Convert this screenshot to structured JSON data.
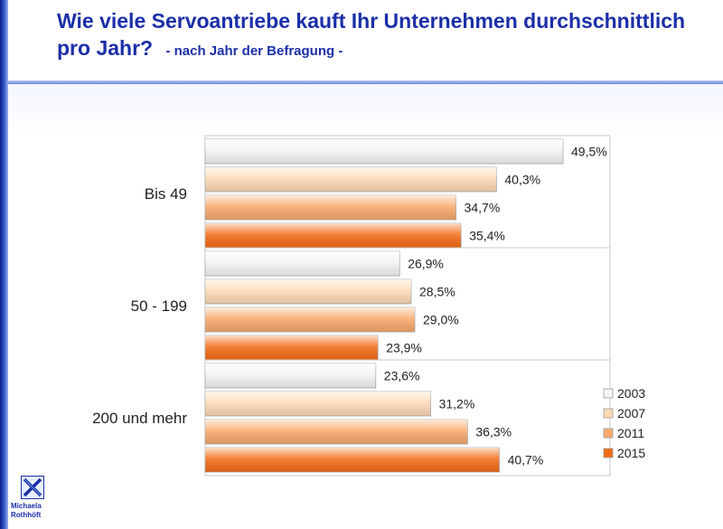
{
  "header": {
    "title": "Wie viele Servoantriebe kauft Ihr Unternehmen durchschnittlich pro Jahr?",
    "subtitle": "- nach Jahr der Befragung -"
  },
  "logo": {
    "line1": "Michaela",
    "line2": "Rothhöft"
  },
  "colors": {
    "accent": "#1b2fa8"
  },
  "chart_data": {
    "type": "bar",
    "orientation": "horizontal",
    "categories": [
      "Bis 49",
      "50 - 199",
      "200 und mehr"
    ],
    "series": [
      {
        "name": "2003",
        "values": [
          49.5,
          26.9,
          23.6
        ],
        "labels": [
          "49,5%",
          "26,9%",
          "23,6%"
        ],
        "color": "#f4f4f4"
      },
      {
        "name": "2007",
        "values": [
          40.3,
          28.5,
          31.2
        ],
        "labels": [
          "40,3%",
          "28,5%",
          "31,2%"
        ],
        "color": "#fdd9b5"
      },
      {
        "name": "2011",
        "values": [
          34.7,
          29.0,
          36.3
        ],
        "labels": [
          "34,7%",
          "29,0%",
          "36,3%"
        ],
        "color": "#f8a96b"
      },
      {
        "name": "2015",
        "values": [
          35.4,
          23.9,
          40.7
        ],
        "labels": [
          "35,4%",
          "23,9%",
          "40,7%"
        ],
        "color": "#f46c16"
      }
    ],
    "xlim": [
      0,
      55
    ],
    "legend": "bottom-right",
    "grid": false
  }
}
